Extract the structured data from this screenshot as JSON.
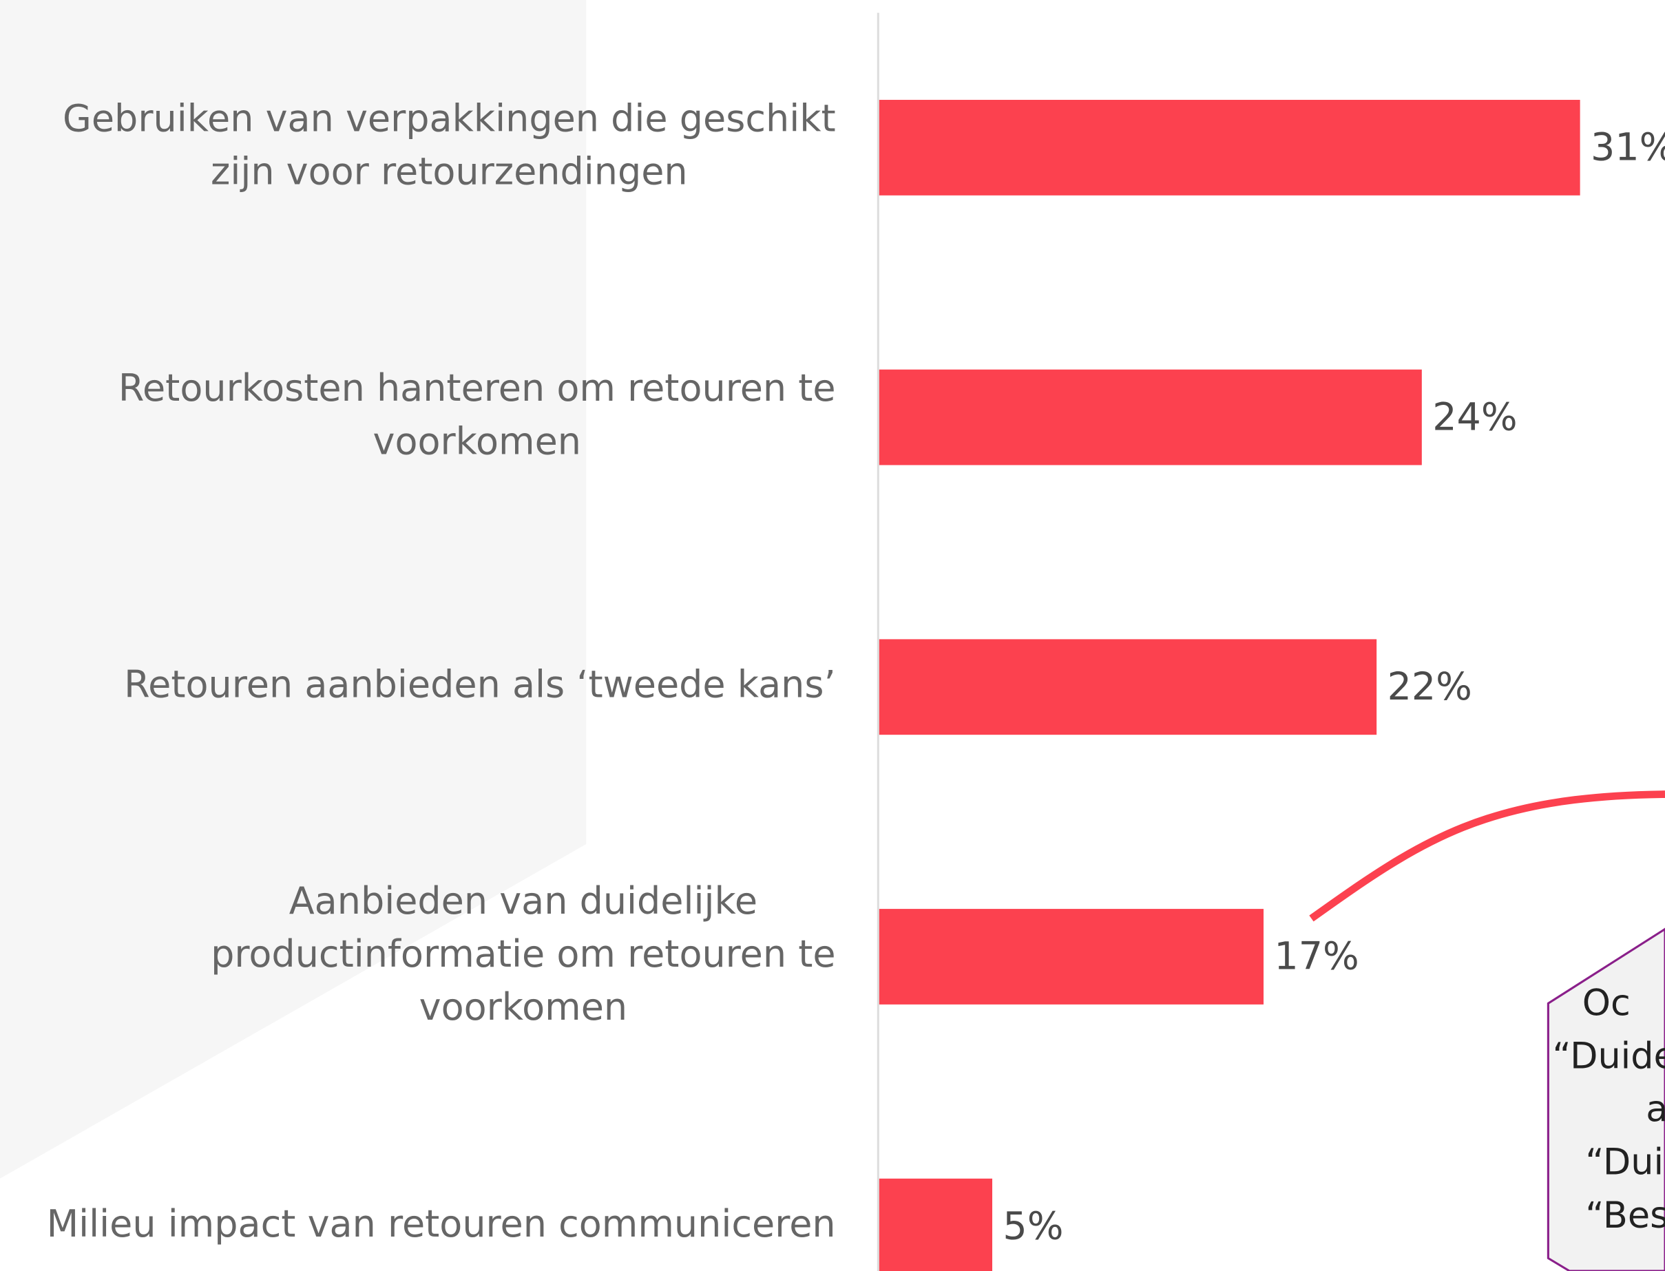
{
  "chart_data": {
    "type": "barh",
    "categories": [
      [
        "Gebruiken van verpakkingen die geschikt",
        "zijn voor retourzendingen"
      ],
      [
        "Retourkosten hanteren om retouren te",
        "voorkomen"
      ],
      [
        "Retouren aanbieden als ‘tweede kans’"
      ],
      [
        "Aanbieden van duidelijke",
        "productinformatie om retouren te",
        "voorkomen"
      ],
      [
        "Milieu impact van retouren communiceren"
      ]
    ],
    "values": [
      31,
      24,
      22,
      17,
      5
    ],
    "value_labels": [
      "31%",
      "24%",
      "22%",
      "17%",
      "5%"
    ],
    "color": "#fc414f",
    "annotation": [
      "Oc",
      "“Duide",
      "a",
      "“Dui",
      "“Bes"
    ]
  }
}
